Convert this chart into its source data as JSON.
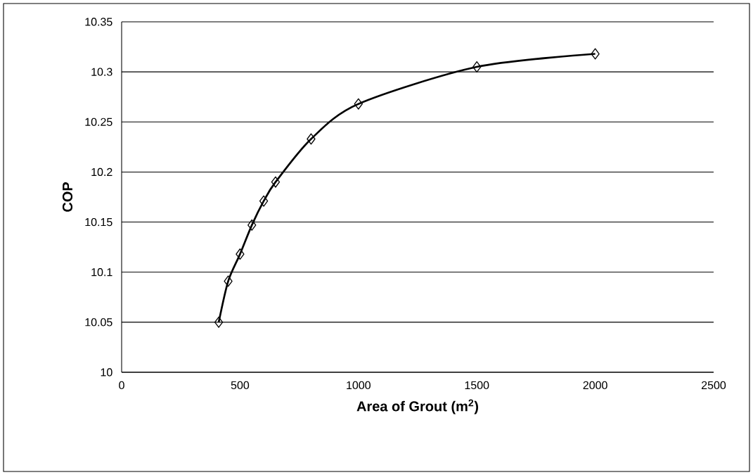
{
  "chart_data": {
    "type": "line",
    "xlabel": "Area of Grout (m$^{2}$)",
    "ylabel": "COP",
    "x": [
      410,
      450,
      500,
      550,
      600,
      650,
      800,
      1000,
      1500,
      2000
    ],
    "series": [
      {
        "color": "#000000",
        "values": [
          10.05,
          10.091,
          10.118,
          10.147,
          10.171,
          10.19,
          10.233,
          10.268,
          10.305,
          10.318
        ]
      }
    ],
    "xlim": [
      0,
      2500
    ],
    "xticks": [
      0,
      500,
      1000,
      1500,
      2000,
      2500
    ],
    "ylim": [
      10,
      10.35
    ],
    "yticks": [
      10,
      10.05,
      10.1,
      10.15,
      10.2,
      10.25,
      10.3,
      10.35
    ],
    "grid": "y",
    "marker": "diamond"
  }
}
